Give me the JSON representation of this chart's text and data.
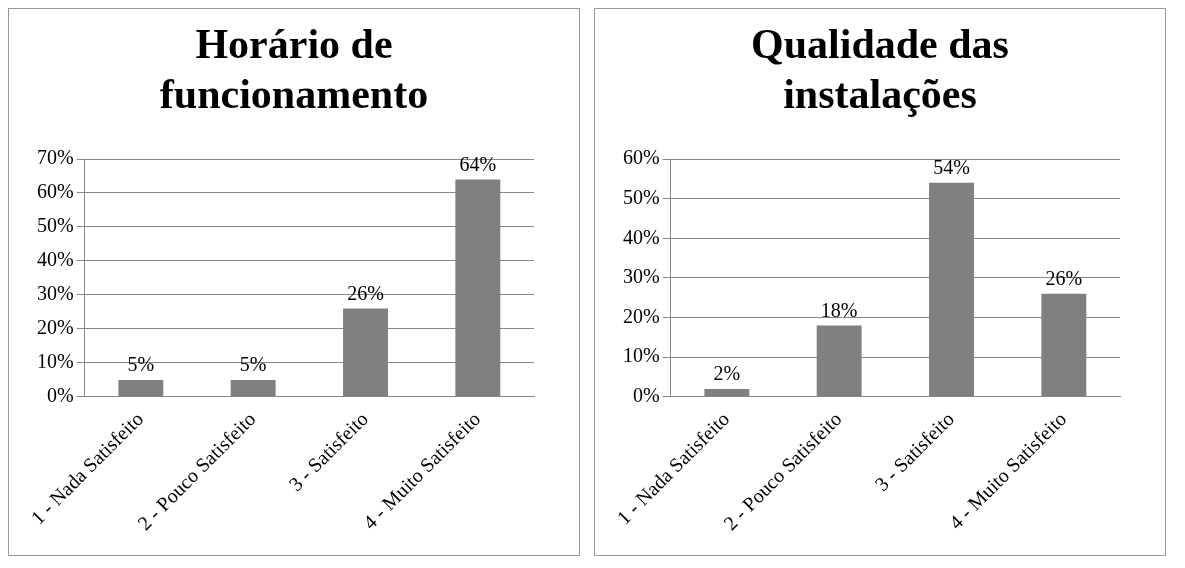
{
  "chart_data": [
    {
      "type": "bar",
      "title": "Horário de funcionamento",
      "categories": [
        "1 - Nada Satisfeito",
        "2 - Pouco Satisfeito",
        "3 - Satisfeito",
        "4 - Muito Satisfeito"
      ],
      "values": [
        5,
        5,
        26,
        64
      ],
      "value_labels": [
        "5%",
        "5%",
        "26%",
        "64%"
      ],
      "color": "#808080",
      "ylim": [
        0,
        70
      ],
      "yticks": [
        {
          "value": 0,
          "label": "0%"
        },
        {
          "value": 10,
          "label": "10%"
        },
        {
          "value": 20,
          "label": "20%"
        },
        {
          "value": 30,
          "label": "30%"
        },
        {
          "value": 40,
          "label": "40%"
        },
        {
          "value": 50,
          "label": "50%"
        },
        {
          "value": 60,
          "label": "60%"
        },
        {
          "value": 70,
          "label": "70%"
        }
      ],
      "grid": "y"
    },
    {
      "type": "bar",
      "title": "Qualidade das instalações",
      "categories": [
        "1 - Nada Satisfeito",
        "2 - Pouco Satisfeito",
        "3 - Satisfeito",
        "4 - Muito Satisfeito"
      ],
      "values": [
        2,
        18,
        54,
        26
      ],
      "value_labels": [
        "2%",
        "18%",
        "54%",
        "26%"
      ],
      "color": "#808080",
      "ylim": [
        0,
        60
      ],
      "yticks": [
        {
          "value": 0,
          "label": "0%"
        },
        {
          "value": 10,
          "label": "10%"
        },
        {
          "value": 20,
          "label": "20%"
        },
        {
          "value": 30,
          "label": "30%"
        },
        {
          "value": 40,
          "label": "40%"
        },
        {
          "value": 50,
          "label": "50%"
        },
        {
          "value": 60,
          "label": "60%"
        }
      ],
      "grid": "y"
    }
  ]
}
